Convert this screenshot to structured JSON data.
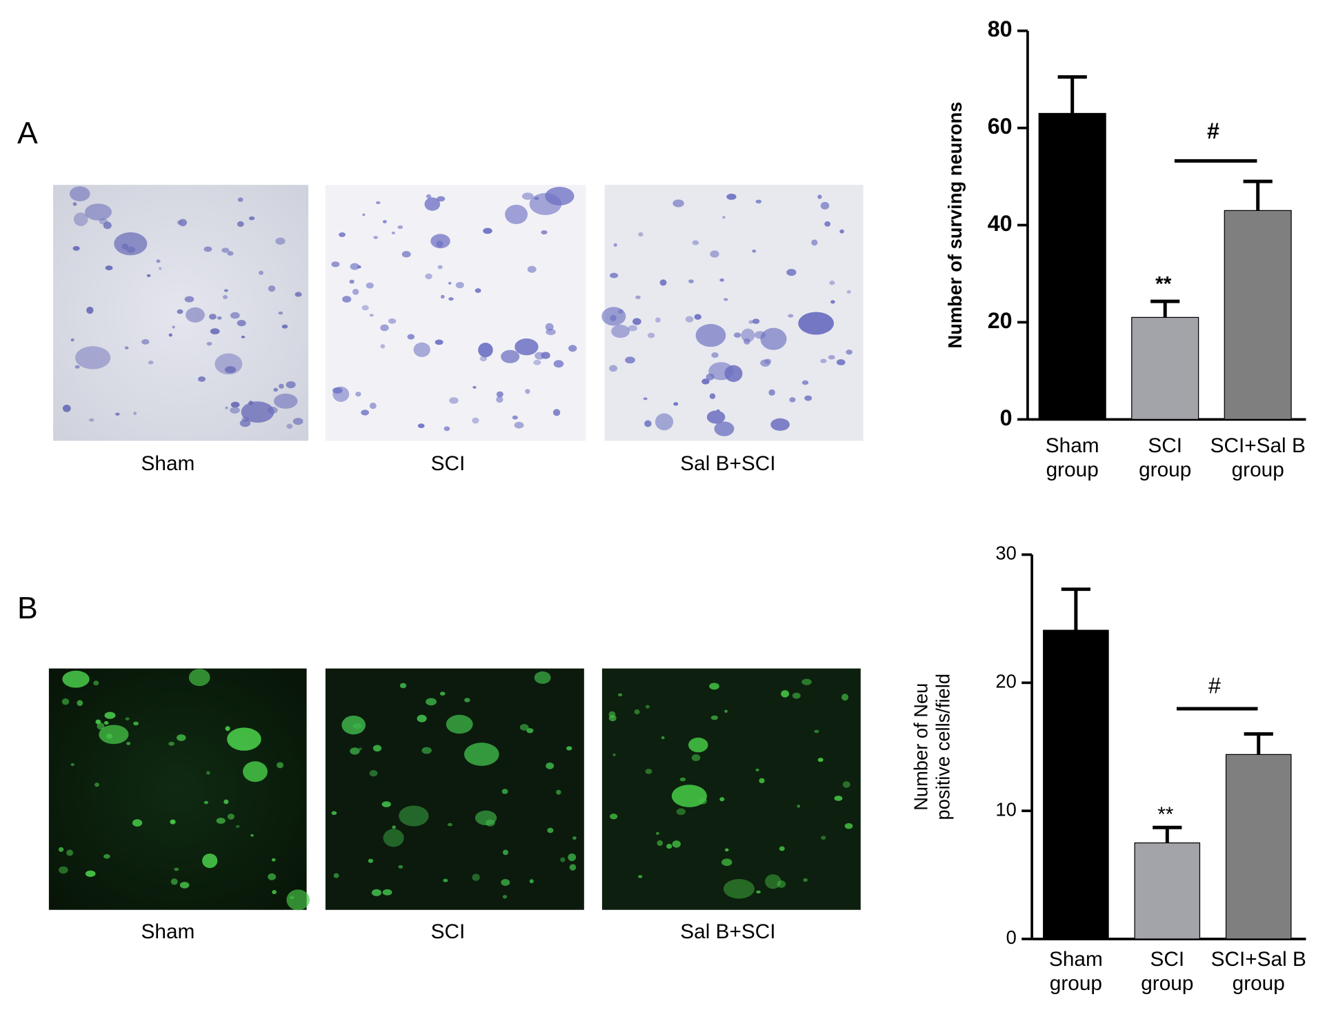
{
  "panels": [
    {
      "label": "A",
      "captions": [
        "Sham",
        "SCI",
        "Sal B+SCI"
      ]
    },
    {
      "label": "B",
      "captions": [
        "Sham",
        "SCI",
        "Sal B+SCI"
      ]
    }
  ],
  "chart_data": [
    {
      "type": "bar",
      "ylabel": [
        "Number of surving neurons"
      ],
      "categories": [
        "Sham group",
        "SCI group",
        "SCI+Sal B group"
      ],
      "values": [
        63,
        21,
        43
      ],
      "errors": [
        7.5,
        3.3,
        6
      ],
      "colors": [
        "#000000",
        "#a3a3aa",
        "#7f7f7f"
      ],
      "ylim": [
        0,
        80
      ],
      "yticks": [
        0,
        20,
        40,
        60,
        80
      ],
      "annotations": [
        "**",
        "#"
      ]
    },
    {
      "type": "bar",
      "ylabel": [
        "Number of Neu",
        "positive cells/field"
      ],
      "categories": [
        "Sham group",
        "SCI group",
        "SCI+Sal B group"
      ],
      "values": [
        24.1,
        7.5,
        14.4
      ],
      "errors": [
        3.2,
        1.2,
        1.6
      ],
      "colors": [
        "#000000",
        "#a3a3aa",
        "#7f7f7f"
      ],
      "ylim": [
        0,
        30
      ],
      "yticks": [
        0,
        10,
        20,
        30
      ],
      "annotations": [
        "**",
        "#"
      ]
    }
  ]
}
